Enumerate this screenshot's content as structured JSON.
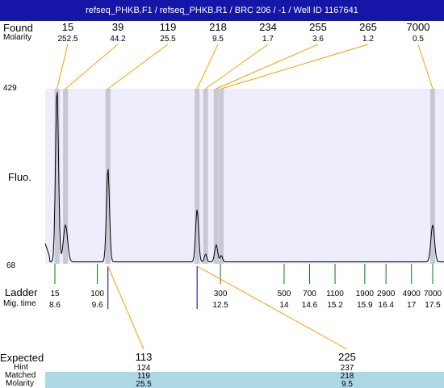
{
  "title": "refseq_PHKB.F1 / refseq_PHKB.R1 / BRC 206 / -1 / Well ID 1167641",
  "labels": {
    "found": "Found",
    "molarity": "Molarity",
    "fluo": "Fluo.",
    "ladder": "Ladder",
    "mig_time": "Mig. time",
    "expected": "Expected",
    "hint": "Hint",
    "matched": "Matched",
    "molarity2": "Molarity"
  },
  "colors": {
    "title_bg": "#1515a8",
    "plot_bg": "#ededfb",
    "band": "#c8c8d4",
    "connector": "#f5a000",
    "ladder_tick": "#008000",
    "highlight_row": "#add8e6"
  },
  "chart_data": {
    "type": "line",
    "ylim": [
      68,
      429
    ],
    "yticks": [
      "429",
      "68"
    ],
    "ylabel": "Fluo.",
    "found": [
      {
        "size": "15",
        "molarity": "252.5",
        "time": 8.65
      },
      {
        "size": "39",
        "molarity": "44.2",
        "time": 8.85
      },
      {
        "size": "119",
        "molarity": "25.5",
        "time": 9.85
      },
      {
        "size": "218",
        "molarity": "9.5",
        "time": 11.95
      },
      {
        "size": "234",
        "molarity": "1.7",
        "time": 12.15
      },
      {
        "size": "255",
        "molarity": "3.6",
        "time": 12.4
      },
      {
        "size": "265",
        "molarity": "1.2",
        "time": 12.52
      },
      {
        "size": "7000",
        "molarity": "0.5",
        "time": 17.5
      }
    ],
    "ladder": [
      {
        "size": "15",
        "time_label": "8.6",
        "time": 8.6
      },
      {
        "size": "100",
        "time_label": "9.6",
        "time": 9.6
      },
      {
        "size": "300",
        "time_label": "12.5",
        "time": 12.5
      },
      {
        "size": "500",
        "time_label": "14",
        "time": 14.0
      },
      {
        "size": "700",
        "time_label": "14.6",
        "time": 14.6
      },
      {
        "size": "1100",
        "time_label": "15.2",
        "time": 15.2
      },
      {
        "size": "1900",
        "time_label": "15.9",
        "time": 15.9
      },
      {
        "size": "2900",
        "time_label": "16.4",
        "time": 16.4
      },
      {
        "size": "4900",
        "time_label": "17",
        "time": 17.0
      },
      {
        "size": "7000",
        "time_label": "17.5",
        "time": 17.5
      }
    ],
    "trace": {
      "baseline": 72,
      "peaks": [
        {
          "time": 8.65,
          "height": 429,
          "width": 0.05
        },
        {
          "time": 8.85,
          "height": 148,
          "width": 0.07
        },
        {
          "time": 9.85,
          "height": 265,
          "width": 0.05
        },
        {
          "time": 11.95,
          "height": 180,
          "width": 0.05
        },
        {
          "time": 12.15,
          "height": 88,
          "width": 0.04
        },
        {
          "time": 12.4,
          "height": 107,
          "width": 0.05
        },
        {
          "time": 12.52,
          "height": 85,
          "width": 0.04
        },
        {
          "time": 17.5,
          "height": 148,
          "width": 0.06
        }
      ]
    },
    "expected": [
      {
        "size": "113",
        "hint": "124",
        "matched": "119",
        "molarity": "25.5",
        "time": 9.85
      },
      {
        "size": "225",
        "hint": "237",
        "matched": "218",
        "molarity": "9.5",
        "time": 11.95
      }
    ]
  }
}
